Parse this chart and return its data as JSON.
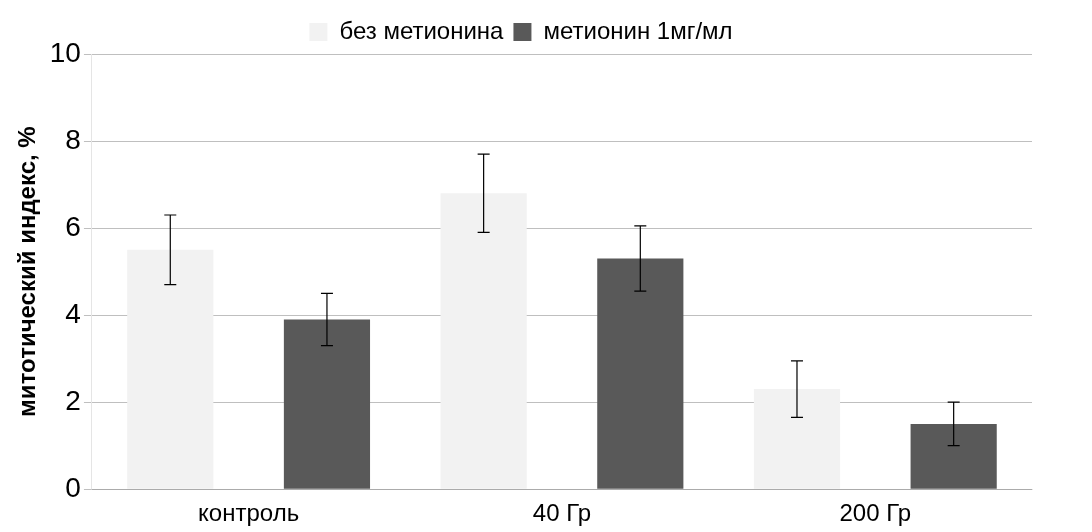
{
  "chart_data": {
    "type": "bar",
    "ylabel": "митотический индекс, %",
    "categories": [
      "контроль",
      "40 Гр",
      "200 Гр"
    ],
    "series": [
      {
        "name": "без метионина",
        "color": "#f2f2f2",
        "values": [
          5.5,
          6.8,
          2.3
        ],
        "errors": [
          0.8,
          0.9,
          0.65
        ]
      },
      {
        "name": "метионин 1мг/мл",
        "color": "#595959",
        "values": [
          3.9,
          5.3,
          1.5
        ],
        "errors": [
          0.6,
          0.75,
          0.5
        ]
      }
    ],
    "ylim": [
      0,
      10
    ],
    "yticks": [
      0,
      2,
      4,
      6,
      8,
      10
    ],
    "grid": "y",
    "legend": "top"
  }
}
